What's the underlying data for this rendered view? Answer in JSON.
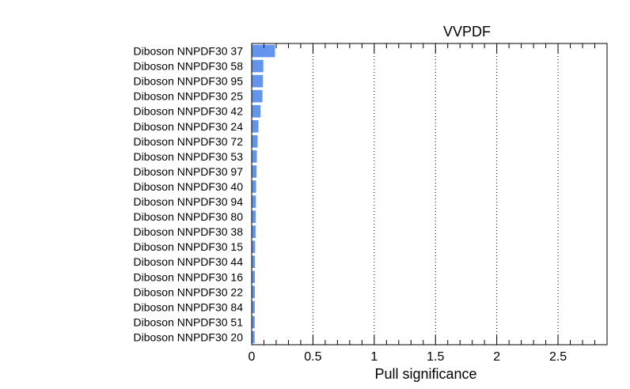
{
  "chart_data": {
    "type": "bar",
    "orientation": "horizontal",
    "title": "VVPDF",
    "xlabel": "Pull significance",
    "ylabel": "",
    "xlim": [
      0,
      2.9
    ],
    "xticks": [
      "0",
      "0.5",
      "1",
      "1.5",
      "2",
      "2.5"
    ],
    "grid": "vertical dotted at major ticks",
    "bar_color": "#6495ed",
    "categories": [
      "Diboson NNPDF30 37",
      "Diboson NNPDF30 58",
      "Diboson NNPDF30 95",
      "Diboson NNPDF30 25",
      "Diboson NNPDF30 42",
      "Diboson NNPDF30 24",
      "Diboson NNPDF30 72",
      "Diboson NNPDF30 53",
      "Diboson NNPDF30 97",
      "Diboson NNPDF30 40",
      "Diboson NNPDF30 94",
      "Diboson NNPDF30 80",
      "Diboson NNPDF30 38",
      "Diboson NNPDF30 15",
      "Diboson NNPDF30 44",
      "Diboson NNPDF30 16",
      "Diboson NNPDF30 22",
      "Diboson NNPDF30 84",
      "Diboson NNPDF30 51",
      "Diboson NNPDF30 20"
    ],
    "values": [
      0.19,
      0.095,
      0.092,
      0.088,
      0.072,
      0.055,
      0.048,
      0.042,
      0.04,
      0.036,
      0.034,
      0.033,
      0.032,
      0.028,
      0.027,
      0.026,
      0.026,
      0.025,
      0.025,
      0.024
    ]
  }
}
